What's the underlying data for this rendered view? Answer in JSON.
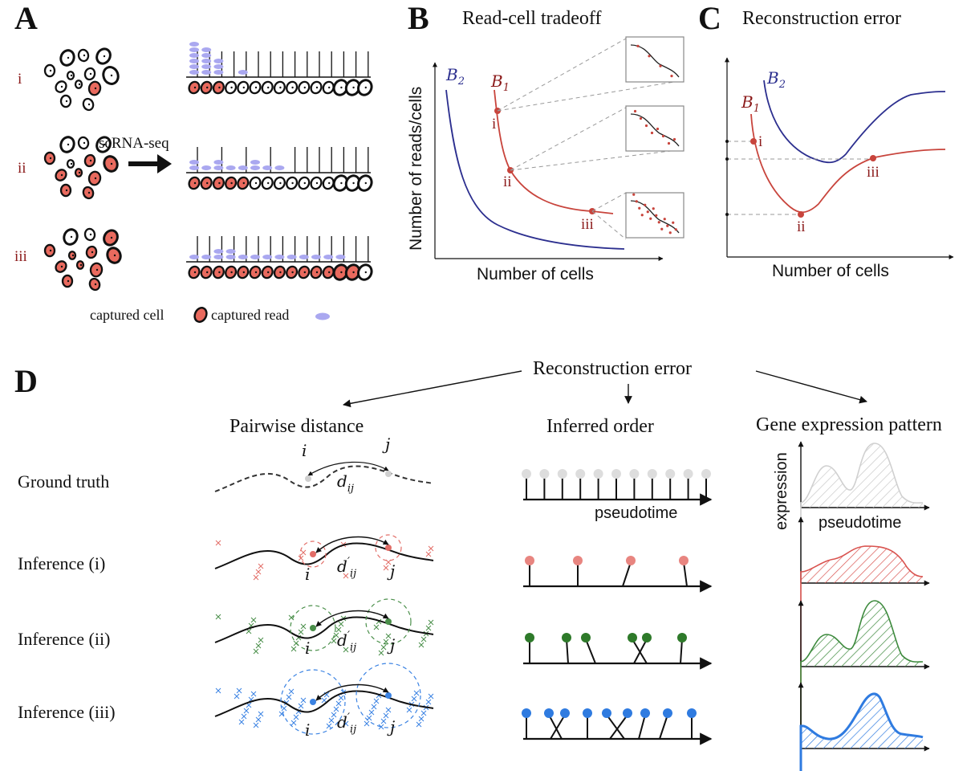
{
  "panels": {
    "A": {
      "letter": "A",
      "rows": [
        "i",
        "ii",
        "iii"
      ],
      "arrow_label": "scRNA-seq",
      "legend": {
        "cell": "captured cell",
        "read": "captured read"
      }
    },
    "B": {
      "letter": "B",
      "title": "Read-cell tradeoff",
      "xlabel": "Number of cells",
      "ylabel": "Number of reads/cells",
      "curve_labels": {
        "b1": "B",
        "b1_sub": "1",
        "b2": "B",
        "b2_sub": "2"
      },
      "points": [
        "i",
        "ii",
        "iii"
      ]
    },
    "C": {
      "letter": "C",
      "title": "Reconstruction error",
      "xlabel": "Number of cells",
      "curve_labels": {
        "b1": "B",
        "b1_sub": "1",
        "b2": "B",
        "b2_sub": "2"
      },
      "points": [
        "i",
        "ii",
        "iii"
      ]
    },
    "D": {
      "letter": "D",
      "header": "Reconstruction error",
      "columns": [
        "Pairwise distance",
        "Inferred order",
        "Gene expression pattern"
      ],
      "rows": [
        "Ground truth",
        "Inference (i)",
        "Inference (ii)",
        "Inference (iii)"
      ],
      "labels": {
        "i": "i",
        "j": "j",
        "d": "d",
        "sub_ij": "ij",
        "prime": "′"
      },
      "pseudotime": "pseudotime",
      "expression": "expression"
    }
  },
  "colors": {
    "red": "#c8443c",
    "dark_red": "#8b1a1a",
    "blue_curve": "#2c2f8f",
    "gray": "#cfcfcf",
    "pink": "#e57e7a",
    "green": "#2e7a2a",
    "light_green": "#5aa05a",
    "blue": "#2f7be0",
    "read": "#aaa8f0"
  }
}
